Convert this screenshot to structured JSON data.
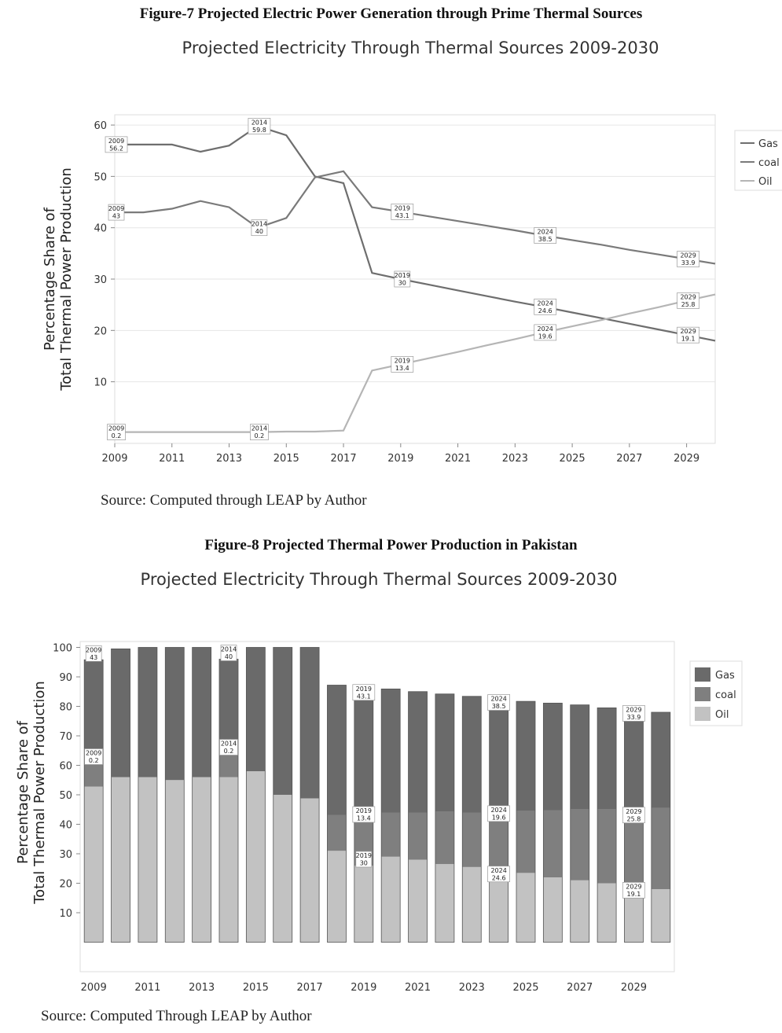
{
  "figures": [
    {
      "caption": "Figure-7 Projected Electric Power Generation through Prime Thermal Sources",
      "source": "Source: Computed through LEAP by Author"
    },
    {
      "caption": "Figure-8 Projected Thermal Power Production in Pakistan",
      "source": "Source: Computed Through LEAP by Author"
    }
  ],
  "chart_data": [
    {
      "type": "line",
      "title": "Projected Electricity Through Thermal Sources 2009-2030",
      "xlabel": "",
      "ylabel": "Percentage Share of Total Thermal Power Production",
      "ylabel_lines": [
        "Percentage Share of",
        "Total Thermal Power Production"
      ],
      "x": [
        2009,
        2010,
        2011,
        2012,
        2013,
        2014,
        2015,
        2016,
        2017,
        2018,
        2019,
        2020,
        2021,
        2022,
        2023,
        2024,
        2025,
        2026,
        2027,
        2028,
        2029,
        2030
      ],
      "xticks": [
        2009,
        2011,
        2013,
        2015,
        2017,
        2019,
        2021,
        2023,
        2025,
        2027,
        2029
      ],
      "xlim": [
        2009,
        2030
      ],
      "yticks": [
        10,
        20,
        30,
        40,
        50,
        60
      ],
      "ylim": [
        -2,
        62
      ],
      "grid": true,
      "legend_position": "right",
      "series": [
        {
          "name": "Gas",
          "color": "#6e6e6e",
          "values": [
            56.2,
            56.2,
            56.2,
            54.8,
            56,
            59.8,
            58,
            50,
            48.7,
            31.2,
            30,
            28.9,
            27.8,
            26.7,
            25.6,
            24.6,
            23.5,
            22.4,
            21.3,
            20.2,
            19.1,
            18
          ]
        },
        {
          "name": "coal",
          "color": "#7a7a7a",
          "values": [
            43,
            43,
            43.7,
            45.2,
            44,
            40,
            41.9,
            49.8,
            51,
            44,
            43.1,
            42.2,
            41.3,
            40.4,
            39.5,
            38.5,
            37.6,
            36.7,
            35.7,
            34.8,
            33.9,
            33
          ]
        },
        {
          "name": "Oil",
          "color": "#b5b5b5",
          "values": [
            0.2,
            0.2,
            0.2,
            0.2,
            0.2,
            0.2,
            0.3,
            0.3,
            0.5,
            12.2,
            13.4,
            14.6,
            15.8,
            17.1,
            18.3,
            19.6,
            20.8,
            22,
            23.3,
            24.5,
            25.8,
            27
          ]
        }
      ],
      "data_labels": [
        {
          "x": 2009,
          "y": 56.2,
          "year": "2009",
          "value": "56.2"
        },
        {
          "x": 2014,
          "y": 59.8,
          "year": "2014",
          "value": "59.8"
        },
        {
          "x": 2009,
          "y": 43,
          "year": "2009",
          "value": "43"
        },
        {
          "x": 2014,
          "y": 40,
          "year": "2014",
          "value": "40"
        },
        {
          "x": 2019,
          "y": 43.1,
          "year": "2019",
          "value": "43.1"
        },
        {
          "x": 2024,
          "y": 38.5,
          "year": "2024",
          "value": "38.5"
        },
        {
          "x": 2029,
          "y": 33.9,
          "year": "2029",
          "value": "33.9"
        },
        {
          "x": 2019,
          "y": 30,
          "year": "2019",
          "value": "30"
        },
        {
          "x": 2024,
          "y": 24.6,
          "year": "2024",
          "value": "24.6"
        },
        {
          "x": 2029,
          "y": 19.1,
          "year": "2029",
          "value": "19.1"
        },
        {
          "x": 2019,
          "y": 13.4,
          "year": "2019",
          "value": "13.4"
        },
        {
          "x": 2024,
          "y": 19.6,
          "year": "2024",
          "value": "19.6"
        },
        {
          "x": 2029,
          "y": 25.8,
          "year": "2029",
          "value": "25.8"
        },
        {
          "x": 2009,
          "y": 0.2,
          "year": "2009",
          "value": "0.2"
        },
        {
          "x": 2014,
          "y": 0.2,
          "year": "2014",
          "value": "0.2"
        }
      ]
    },
    {
      "type": "bar",
      "stacked": true,
      "title": "Projected Electricity Through Thermal Sources 2009-2030",
      "xlabel": "",
      "ylabel": "Percentage Share of Total Thermal Power Production",
      "ylabel_lines": [
        "Percentage Share of",
        "Total Thermal Power Production"
      ],
      "categories": [
        2009,
        2010,
        2011,
        2012,
        2013,
        2014,
        2015,
        2016,
        2017,
        2018,
        2019,
        2020,
        2021,
        2022,
        2023,
        2024,
        2025,
        2026,
        2027,
        2028,
        2029,
        2030
      ],
      "xticks": [
        2009,
        2011,
        2013,
        2015,
        2017,
        2019,
        2021,
        2023,
        2025,
        2027,
        2029
      ],
      "yticks": [
        10,
        20,
        30,
        40,
        50,
        60,
        70,
        80,
        90,
        100
      ],
      "ylim": [
        -10,
        102
      ],
      "grid": false,
      "legend_position": "right",
      "series": [
        {
          "name": "Oil",
          "color": "#c2c2c2",
          "values": [
            52.8,
            56,
            56,
            55,
            56,
            56,
            58,
            50,
            48.8,
            31,
            26,
            29,
            28,
            26.5,
            25.5,
            21,
            23.5,
            22,
            21,
            20,
            15.5,
            18
          ]
        },
        {
          "name": "coal",
          "color": "#7f7f7f",
          "values": [
            8,
            0,
            0,
            0,
            0,
            8,
            0,
            0,
            0,
            12.2,
            15.2,
            15,
            16,
            17.7,
            18.5,
            20.5,
            21,
            22.8,
            24,
            25,
            25.5,
            27.5
          ]
        },
        {
          "name": "Gas",
          "color": "#6a6a6a",
          "values": [
            35,
            43.5,
            44,
            45,
            44,
            32,
            42,
            50,
            51.2,
            44,
            41.4,
            41.9,
            41,
            40,
            39.4,
            37.7,
            37.2,
            36.3,
            35.5,
            34.5,
            34.5,
            32.5
          ]
        }
      ],
      "legend_order": [
        "Gas",
        "coal",
        "Oil"
      ],
      "data_labels": [
        {
          "x": 2009,
          "y": 95.8,
          "year": "2009",
          "value": "43"
        },
        {
          "x": 2014,
          "y": 96,
          "year": "2014",
          "value": "40"
        },
        {
          "x": 2019,
          "y": 82.6,
          "year": "2019",
          "value": "43.1"
        },
        {
          "x": 2024,
          "y": 79.2,
          "year": "2024",
          "value": "38.5"
        },
        {
          "x": 2029,
          "y": 75.5,
          "year": "2029",
          "value": "33.9"
        },
        {
          "x": 2009,
          "y": 60.8,
          "year": "2009",
          "value": "0.2"
        },
        {
          "x": 2014,
          "y": 64,
          "year": "2014",
          "value": "0.2"
        },
        {
          "x": 2019,
          "y": 41.2,
          "year": "2019",
          "value": "13.4"
        },
        {
          "x": 2024,
          "y": 41.5,
          "year": "2024",
          "value": "19.6"
        },
        {
          "x": 2029,
          "y": 41,
          "year": "2029",
          "value": "25.8"
        },
        {
          "x": 2019,
          "y": 26,
          "year": "2019",
          "value": "30"
        },
        {
          "x": 2024,
          "y": 21,
          "year": "2024",
          "value": "24.6"
        },
        {
          "x": 2029,
          "y": 15.5,
          "year": "2029",
          "value": "19.1"
        }
      ]
    }
  ]
}
